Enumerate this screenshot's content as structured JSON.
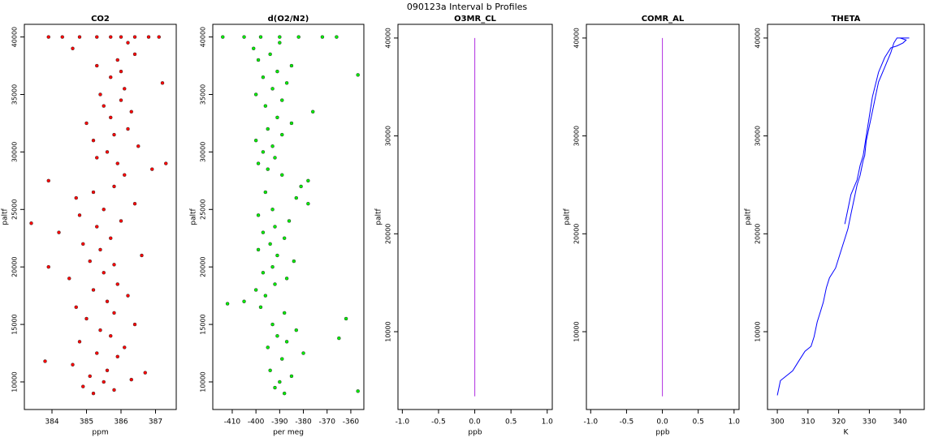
{
  "title": "090123a   Interval b Profiles",
  "chart_data": [
    {
      "type": "scatter",
      "title": "CO2",
      "x_label": "ppm",
      "y_label": "paltf",
      "color": "#ff0000",
      "xlim": [
        383.2,
        387.6
      ],
      "ylim": [
        7600,
        41100
      ],
      "xticks": [
        384,
        385,
        386,
        387
      ],
      "yticks": [
        10000,
        15000,
        20000,
        25000,
        30000,
        35000,
        40000
      ],
      "x": [
        385.2,
        385.8,
        384.9,
        385.5,
        386.3,
        385.1,
        386.7,
        385.6,
        384.6,
        383.8,
        385.9,
        385.3,
        386.1,
        384.8,
        385.7,
        385.4,
        386.4,
        385.0,
        385.8,
        384.7,
        385.6,
        386.2,
        385.2,
        385.9,
        384.5,
        385.5,
        383.9,
        385.8,
        385.1,
        386.6,
        385.4,
        384.9,
        385.7,
        384.2,
        385.3,
        386.0,
        384.8,
        385.5,
        386.4,
        384.7,
        385.2,
        385.8,
        383.9,
        386.1,
        386.9,
        385.9,
        385.3,
        385.6,
        386.5,
        385.2,
        385.8,
        386.2,
        385.0,
        385.7,
        386.3,
        385.5,
        386.0,
        385.4,
        386.1,
        387.2,
        385.7,
        386.0,
        385.3,
        385.9,
        386.4,
        384.6,
        386.2,
        384.3,
        384.8,
        385.3,
        385.7,
        386.0,
        386.4,
        386.8,
        387.1,
        383.9,
        383.4,
        387.3
      ],
      "values": [
        9000,
        9300,
        9600,
        10000,
        10200,
        10500,
        10800,
        11000,
        11500,
        11800,
        12200,
        12500,
        13000,
        13500,
        14000,
        14500,
        15000,
        15500,
        16000,
        16500,
        17000,
        17500,
        18000,
        18500,
        19000,
        19500,
        20000,
        20200,
        20500,
        21000,
        21500,
        22000,
        22500,
        23000,
        23500,
        24000,
        24500,
        25000,
        25500,
        26000,
        26500,
        27000,
        27500,
        28000,
        28500,
        29000,
        29500,
        30000,
        30500,
        31000,
        31500,
        32000,
        32500,
        33000,
        33500,
        34000,
        34500,
        35000,
        35500,
        36000,
        36500,
        37000,
        37500,
        38000,
        38500,
        39000,
        39500,
        40000,
        40000,
        40000,
        40000,
        40000,
        40000,
        40000,
        40000,
        40000,
        23800,
        29000
      ]
    },
    {
      "type": "scatter",
      "title": "d(O2/N2)",
      "x_label": "per meg",
      "y_label": "paltf",
      "color": "#00ee00",
      "xlim": [
        -418.2,
        -354.5
      ],
      "ylim": [
        7600,
        41100
      ],
      "xticks": [
        -410,
        -400,
        -390,
        -380,
        -370,
        -360
      ],
      "yticks": [
        10000,
        15000,
        20000,
        25000,
        30000,
        35000,
        40000
      ],
      "x": [
        -388,
        -392,
        -390,
        -385,
        -394,
        -389,
        -380,
        -395,
        -387,
        -391,
        -383,
        -393,
        -362,
        -388,
        -398,
        -412,
        -405,
        -396,
        -400,
        -392,
        -387,
        -397,
        -393,
        -384,
        -391,
        -399,
        -394,
        -388,
        -397,
        -392,
        -386,
        -399,
        -393,
        -378,
        -383,
        -396,
        -381,
        -378,
        -389,
        -395,
        -399,
        -392,
        -397,
        -393,
        -400,
        -389,
        -395,
        -385,
        -391,
        -376,
        -396,
        -389,
        -400,
        -393,
        -387,
        -397,
        -391,
        -385,
        -399,
        -394,
        -401,
        -390,
        -414,
        -405,
        -398,
        -390,
        -382,
        -372,
        -366,
        -357,
        -357,
        -365
      ],
      "values": [
        9000,
        9500,
        10000,
        10500,
        11000,
        12000,
        12500,
        13000,
        13500,
        14000,
        14500,
        15000,
        15500,
        16000,
        16500,
        16800,
        17000,
        17500,
        18000,
        18500,
        19000,
        19500,
        20000,
        20500,
        21000,
        21500,
        22000,
        22500,
        23000,
        23500,
        24000,
        24500,
        25000,
        25500,
        26000,
        26500,
        27000,
        27500,
        28000,
        28500,
        29000,
        29500,
        30000,
        30500,
        31000,
        31500,
        32000,
        32500,
        33000,
        33500,
        34000,
        34500,
        35000,
        35500,
        36000,
        36500,
        37000,
        37500,
        38000,
        38500,
        39000,
        39500,
        40000,
        40000,
        40000,
        40000,
        40000,
        40000,
        40000,
        9200,
        36700,
        13800
      ]
    },
    {
      "type": "line",
      "title": "O3MR_CL",
      "x_label": "ppb",
      "y_label": "paltf",
      "color": "#b030e0",
      "xlim": [
        -1.06,
        1.07
      ],
      "ylim": [
        2050,
        41400
      ],
      "xticks": [
        {
          "value": -1,
          "label": "-1.0"
        },
        -0.5,
        {
          "value": 0,
          "label": "0.0"
        },
        0.5,
        {
          "value": 1,
          "label": "1.0"
        }
      ],
      "yticks": [
        10000,
        20000,
        30000,
        40000
      ],
      "x": [
        0,
        0
      ],
      "values": [
        3400,
        40000
      ]
    },
    {
      "type": "line",
      "title": "COMR_AL",
      "x_label": "ppb",
      "y_label": "paltf",
      "color": "#b030e0",
      "xlim": [
        -1.06,
        1.07
      ],
      "ylim": [
        2050,
        41400
      ],
      "xticks": [
        {
          "value": -1,
          "label": "-1.0"
        },
        -0.5,
        {
          "value": 0,
          "label": "0.0"
        },
        0.5,
        {
          "value": 1,
          "label": "1.0"
        }
      ],
      "yticks": [
        10000,
        20000,
        30000,
        40000
      ],
      "x": [
        0,
        0
      ],
      "values": [
        3400,
        40000
      ]
    },
    {
      "type": "line",
      "title": "THETA",
      "x_label": "K",
      "y_label": "paltf",
      "color": "#0000ff",
      "xlim": [
        296.8,
        347.9
      ],
      "ylim": [
        2050,
        41400
      ],
      "xticks": [
        300,
        310,
        320,
        330,
        340
      ],
      "yticks": [
        10000,
        20000,
        30000,
        40000
      ],
      "x": [
        300,
        301,
        303,
        305,
        307,
        309,
        311,
        312,
        313,
        314,
        315,
        316,
        317,
        319,
        320,
        321,
        322,
        323,
        324,
        325,
        326,
        327,
        328,
        328.5,
        329,
        330,
        331,
        332,
        333,
        335,
        337,
        338,
        339,
        343,
        null,
        322,
        323,
        324,
        326,
        327,
        328,
        329,
        330,
        331,
        333,
        335,
        337,
        339,
        341,
        342,
        340
      ],
      "values": [
        3500,
        5000,
        5500,
        6000,
        7000,
        8000,
        8500,
        9500,
        11000,
        12000,
        13000,
        14500,
        15500,
        16500,
        17500,
        18500,
        19500,
        20500,
        22000,
        23500,
        25000,
        26000,
        27500,
        28000,
        29500,
        31000,
        32500,
        34000,
        35500,
        37000,
        38500,
        39500,
        40000,
        40000,
        null,
        21000,
        22500,
        24000,
        25500,
        27000,
        28000,
        30000,
        32000,
        34000,
        36500,
        38000,
        39000,
        39200,
        39500,
        39800,
        40000
      ]
    }
  ]
}
